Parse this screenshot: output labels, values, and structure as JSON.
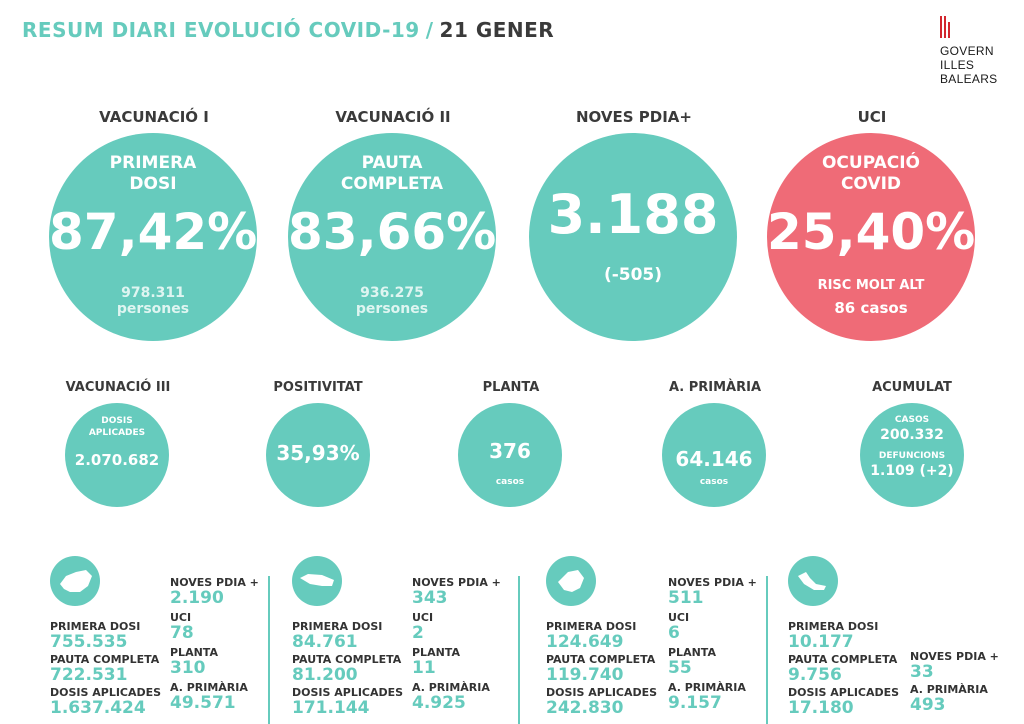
{
  "header": {
    "title_main": "RESUM DIARI EVOLUCIÓ COVID-19",
    "title_sep": "/",
    "title_date": "21 GENER"
  },
  "logo": {
    "line1": "GOVERN",
    "line2": "ILLES",
    "line3": "BALEARS"
  },
  "top": [
    {
      "header": "VACUNACIÓ I",
      "label1": "PRIMERA",
      "label2": "DOSI",
      "value": "87,42%",
      "sub1": "978.311",
      "sub2": "persones",
      "color": "#66cbbd"
    },
    {
      "header": "VACUNACIÓ II",
      "label1": "PAUTA",
      "label2": "COMPLETA",
      "value": "83,66%",
      "sub1": "936.275",
      "sub2": "persones",
      "color": "#66cbbd"
    },
    {
      "header": "NOVES PDIA+",
      "value": "3.188",
      "sub1": "(-505)",
      "color": "#66cbbd"
    },
    {
      "header": "UCI",
      "label1": "OCUPACIÓ",
      "label2": "COVID",
      "value": "25,40%",
      "sub1": "RISC MOLT ALT",
      "sub2": "86 casos",
      "color": "#ef6b77"
    }
  ],
  "mid": [
    {
      "header": "VACUNACIÓ III",
      "label1": "DOSIS",
      "label2": "APLICADES",
      "value": "2.070.682"
    },
    {
      "header": "POSITIVITAT",
      "value": "35,93%"
    },
    {
      "header": "PLANTA",
      "value": "376",
      "sub": "casos"
    },
    {
      "header": "A. PRIMÀRIA",
      "value": "64.146",
      "sub": "casos"
    },
    {
      "header": "ACUMULAT",
      "label1": "CASOS",
      "value1": "200.332",
      "label2": "DEFUNCIONS",
      "value2": "1.109 (+2)"
    }
  ],
  "islands": [
    {
      "name": "mallorca",
      "primera_label": "PRIMERA DOSI",
      "primera": "755.535",
      "pauta_label": "PAUTA COMPLETA",
      "pauta": "722.531",
      "dosis_label": "DOSIS APLICADES",
      "dosis": "1.637.424",
      "pdia_label": "NOVES PDIA +",
      "pdia": "2.190",
      "uci_label": "UCI",
      "uci": "78",
      "planta_label": "PLANTA",
      "planta": "310",
      "ap_label": "A. PRIMÀRIA",
      "ap": "49.571"
    },
    {
      "name": "menorca",
      "primera_label": "PRIMERA DOSI",
      "primera": "84.761",
      "pauta_label": "PAUTA COMPLETA",
      "pauta": "81.200",
      "dosis_label": "DOSIS APLICADES",
      "dosis": "171.144",
      "pdia_label": "NOVES PDIA +",
      "pdia": "343",
      "uci_label": "UCI",
      "uci": "2",
      "planta_label": "PLANTA",
      "planta": "11",
      "ap_label": "A. PRIMÀRIA",
      "ap": "4.925"
    },
    {
      "name": "eivissa",
      "primera_label": "PRIMERA DOSI",
      "primera": "124.649",
      "pauta_label": "PAUTA COMPLETA",
      "pauta": "119.740",
      "dosis_label": "DOSIS APLICADES",
      "dosis": "242.830",
      "pdia_label": "NOVES PDIA +",
      "pdia": "511",
      "uci_label": "UCI",
      "uci": "6",
      "planta_label": "PLANTA",
      "planta": "55",
      "ap_label": "A. PRIMÀRIA",
      "ap": "9.157"
    },
    {
      "name": "formentera",
      "primera_label": "PRIMERA DOSI",
      "primera": "10.177",
      "pauta_label": "PAUTA COMPLETA",
      "pauta": "9.756",
      "dosis_label": "DOSIS APLICADES",
      "dosis": "17.180",
      "pdia_label": "NOVES PDIA +",
      "pdia": "33",
      "ap_label": "A. PRIMÀRIA",
      "ap": "493"
    }
  ]
}
